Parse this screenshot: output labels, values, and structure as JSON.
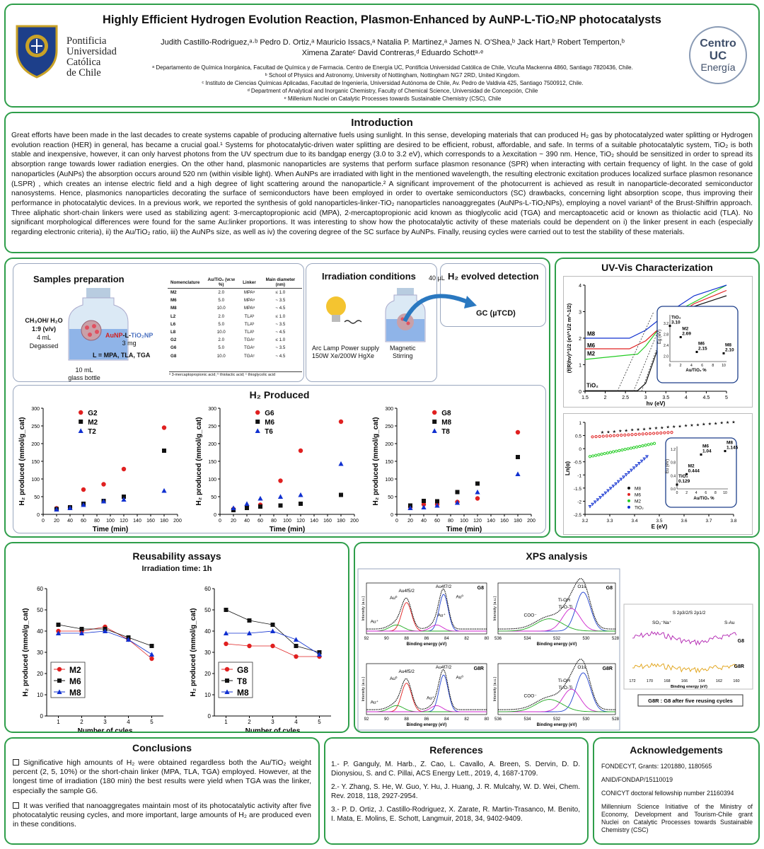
{
  "header": {
    "title": "Highly Efficient Hydrogen Evolution Reaction, Plasmon-Enhanced by AuNP-L-TiO₂NP photocatalysts",
    "authors1": "Judith Castillo-Rodriguez,ᵃ·ᵇ Pedro D. Ortiz,ᵃ Mauricio Issacs,ᵃ Natalia P. Martinez,ᵃ James N. O'Shea,ᵇ Jack Hart,ᵇ Robert Temperton,ᵇ",
    "authors2": "Ximena Zarateᶜ David Contreras,ᵈ Eduardo Schottᵃ·ᵉ",
    "aff": [
      "ᵃ Departamento de Química Inorgánica, Facultad de Química y de Farmacia. Centro de Energía UC, Pontificia Universidad Católica de Chile, Vicuña Mackenna 4860, Santiago 7820436, Chile.",
      "ᵇ School of Physics and Astronomy, University of Nottingham, Nottingham NG7 2RD, United Kingdom.",
      "ᶜ Instituto de Ciencias Químicas Aplicadas, Facultad de Ingeniería, Universidad Autónoma de Chile, Av. Pedro de Valdivia 425, Santiago 7500912, Chile.",
      "ᵈ Department of Analytical and Inorganic Chemistry, Faculty of Chemical Science, Universidad de Concepción, Chile",
      "ᵉ Millenium Nuclei on Catalytic Processes towards Sustainable Chemistry (CSC), Chile"
    ],
    "univ": [
      "Pontificia",
      "Universidad",
      "Católica",
      "de Chile"
    ],
    "centro": [
      "Centro",
      "UC",
      "Energía"
    ]
  },
  "intro": {
    "title": "Introduction",
    "text": "Great efforts have been made in the last decades to create systems capable of producing alternative fuels using sunlight. In this sense, developing materials that can produced H₂ gas by photocatalyzed water splitting or Hydrogen evolution reaction (HER) in general, has became a crucial goal.¹ Systems for photocatalytic-driven water splitting are desired to be efficient, robust, affordable, and safe. In terms of a suitable photocatalytic system, TiO₂ is both stable and inexpensive, however, it can only harvest photons from the UV spectrum due to its bandgap energy (3.0 to 3.2 eV), which corresponds to a λexcitation ~ 390 nm. Hence, TiO₂ should be sensitized in order to spread its absorption range towards lower radiation energies. On the other hand, plasmonic nanoparticles are systems that perform surface plasmon resonance (SPR) when interacting with certain frequency of light. In the case of gold nanoparticles (AuNPs) the absorption occurs around 520 nm (within visible light). When AuNPs are irradiated with light in the mentioned wavelength, the resulting electronic excitation produces localized surface plasmon resonance (LSPR) , which creates an intense electric field and a high degree of light scattering around the nanoparticle.² A significant improvement of the photocurrent is achieved as result in nanoparticle-decorated semiconductor nanosystems. Hence, plasmonics nanoparticles decorating the surface of semiconductors have been employed in order to overtake semiconductors (SC) drawbacks, concerning light absorption scope, thus improving their performance in photocatalytic devices. In a previous work, we reported the synthesis of gold nanoparticles-linker-TiO₂ nanoparticles nanoaggregates (AuNPs-L-TiO₂NPs), employing a novel variant³ of the Brust-Shiffrin approach. Three aliphatic short-chain linkers were used as stabilizing agent: 3-mercaptopropionic acid (MPA), 2-mercaptopropionic acid known as thioglycolic acid (TGA) and mercaptoacetic acid or known as thiolactic acid (TLA). No significant morphological differences were found for the same Au:linker proportions. It was interesting to show how the photocatalytic activity of these materials could be dependent on i) the linker present in each (especially regarding electronic criteria), ii) the Au/TiO₂ ratio, iii) the AuNPs size, as well as iv) the covering degree of the SC surface by AuNPs. Finally, reusing cycles were carried out to test the stability of these materials."
  },
  "prep": {
    "title": "Samples preparation",
    "solvent": "CH₃OH/ H₂O",
    "ratio": "1:9 (v/v)",
    "vol": "4 mL",
    "degassed": "Degassed",
    "bottle": "10 mL",
    "bottle2": "glass bottle",
    "cat_a": "AuNP",
    "cat_b": "-L-",
    "cat_c": "TiO₂NP",
    "mass": "3 mg",
    "linkers": "L = MPA, TLA, TGA",
    "table": {
      "headers": [
        "Nomenclature",
        "Au/TiO₂ (w:w %)",
        "Linker",
        "Main diameter (nm)"
      ],
      "rows": [
        [
          "M2",
          "2.0",
          "MPAᵃ",
          "≤ 1.0"
        ],
        [
          "M6",
          "5.0",
          "MPAᵃ",
          "~ 3.5"
        ],
        [
          "M8",
          "10.0",
          "MPAᵃ",
          "~ 4.5"
        ],
        [
          "L2",
          "2.0",
          "TLAᵇ",
          "≤ 1.0"
        ],
        [
          "L6",
          "5.0",
          "TLAᵇ",
          "~ 3.5"
        ],
        [
          "L8",
          "10.0",
          "TLAᵇ",
          "~ 4.5"
        ],
        [
          "G2",
          "2.0",
          "TGAᶜ",
          "≤ 1.0"
        ],
        [
          "G6",
          "5.0",
          "TGAᶜ",
          "~ 3.5"
        ],
        [
          "G8",
          "10.0",
          "TGAᶜ",
          "~ 4.5"
        ]
      ],
      "foot": "ᵃ 3-mercaptopropionic acid; ᵇ thiolactic acid; ᶜ thioglycolic acid"
    }
  },
  "irr": {
    "title": "Irradiation conditions",
    "lamp1": "Arc Lamp Power supply",
    "lamp2": "150W Xe/200W HgXe",
    "stir1": "Magnetic",
    "stir2": "Stirring",
    "vol": "40 µL"
  },
  "det": {
    "title": "H₂ evolved detection",
    "gc": "GC (µTCD)"
  },
  "h2": {
    "title": "H₂ Produced",
    "ylabel": "H₂ produced (mmol/g_cat)",
    "xlabel": "Time (min)"
  },
  "uvvis": {
    "title": "UV-Vis Characterization",
    "xlabel1": "hν  (eV)",
    "ylabel1": "(f(R)hν)^1/2  (eV^1/2 m^-1/2)",
    "xlabel2": "E (eV)",
    "ylabel2": "Ln(α)",
    "inset1_x": "Au/TiO₂ %",
    "inset1_y": "Eg (eV)",
    "inset2_x": "Au/TiO₂ %",
    "inset2_y": "Eu (eV)"
  },
  "reuse": {
    "title": "Reusability assays",
    "subtitle": "Irradiation time: 1h",
    "xlabel": "Number of cyles",
    "ylabel": "H₂ produced (mmol/g_cat)"
  },
  "xps": {
    "title": "XPS analysis",
    "be": "Binding energy (eV)",
    "intensity": "Intensity (a.u.)",
    "au_labels": [
      "Au4f5/2",
      "Au4f7/2",
      "Au⁰",
      "Au⁰",
      "Au⁺",
      "Au⁺"
    ],
    "o_labels": [
      "O1s",
      "Ti-OH",
      "Ti-O-Ti",
      "COO⁻"
    ],
    "s_title": "S 2p3/2/S 2p1/2",
    "s_labels": [
      "SO₃⁻Na⁺",
      "S-Au"
    ],
    "g8": "G8",
    "g8r": "G8R",
    "note": "G8R : G8 after five reusing cycles"
  },
  "concl": {
    "title": "Conclusions",
    "items": [
      "Significative high amounts of H₂ were obtained regardless both the Au/TiO₂ weight percent (2, 5, 10%) or the short-chain linker (MPA, TLA, TGA) employed. However, at the longest time of irradiation (180 min) the best results were yield when TGA was the linker, especially the sample G6.",
      "It was verified that nanoaggregates maintain most of its photocatalytic activity after five photocatalytic reusing cycles, and more important, large amounts of H₂ are produced even in these conditions."
    ]
  },
  "refs": {
    "title": "References",
    "items": [
      "1.- P. Ganguly, M. Harb., Z. Cao, L. Cavallo, A. Breen, S. Dervin, D. D. Dionysiou, S. and C. Pillai, ACS Energy Lett., 2019, 4, 1687-1709.",
      "2.- Y. Zhang, S. He, W. Guo, Y. Hu, J. Huang, J. R. Mulcahy, W. D. Wei, Chem. Rev. 2018, 118, 2927-2954.",
      "3.- P. D. Ortiz, J. Castillo-Rodriguez, X. Zarate, R. Martin-Trasanco, M. Benito, I. Mata, E. Molins, E. Schott, Langmuir, 2018, 34, 9402-9409."
    ]
  },
  "ack": {
    "title": "Acknowledgements",
    "items": [
      "FONDECYT, Grants: 1201880, 1180565",
      "ANID/FONDAP/15110019",
      "CONICYT doctoral fellowship number 21160394",
      "Millennium Science Initiative of the Ministry of Economy, Development and Tourism-Chile grant Nuclei on Catalytic Processes towards Sustainable Chemistry (CSC)"
    ]
  },
  "colors": {
    "red": "#e02020",
    "black": "#111111",
    "blue": "#1030d0",
    "green": "#22cc22",
    "panel": "#2e9e4a"
  },
  "chart_data": [
    {
      "type": "scatter",
      "legend_title": "",
      "x": [
        20,
        40,
        60,
        90,
        120,
        180
      ],
      "xlim": [
        0,
        200
      ],
      "ylim": [
        0,
        300
      ],
      "series": [
        {
          "name": "G2",
          "values": [
            17,
            20,
            70,
            85,
            128,
            245
          ]
        },
        {
          "name": "M2",
          "values": [
            15,
            20,
            30,
            38,
            50,
            180
          ]
        },
        {
          "name": "T2",
          "values": [
            14,
            18,
            27,
            37,
            42,
            67
          ]
        }
      ]
    },
    {
      "type": "scatter",
      "x": [
        20,
        40,
        60,
        90,
        120,
        180
      ],
      "xlim": [
        0,
        200
      ],
      "ylim": [
        0,
        300
      ],
      "series": [
        {
          "name": "G6",
          "values": [
            15,
            22,
            27,
            95,
            180,
            262
          ]
        },
        {
          "name": "M6",
          "values": [
            12,
            18,
            22,
            25,
            30,
            55
          ]
        },
        {
          "name": "T6",
          "values": [
            18,
            30,
            45,
            50,
            55,
            143
          ]
        }
      ]
    },
    {
      "type": "scatter",
      "x": [
        20,
        40,
        60,
        90,
        120,
        180
      ],
      "xlim": [
        0,
        200
      ],
      "ylim": [
        0,
        300
      ],
      "series": [
        {
          "name": "G8",
          "values": [
            20,
            28,
            28,
            35,
            45,
            232
          ]
        },
        {
          "name": "M8",
          "values": [
            25,
            38,
            37,
            63,
            87,
            162
          ]
        },
        {
          "name": "T8",
          "values": [
            18,
            20,
            25,
            33,
            63,
            114
          ]
        }
      ]
    },
    {
      "type": "line",
      "x": [
        1,
        2,
        3,
        4,
        5
      ],
      "xlim": [
        0.5,
        5.5
      ],
      "ylim": [
        0,
        60
      ],
      "series": [
        {
          "name": "M2",
          "values": [
            40,
            40,
            42,
            36,
            27
          ]
        },
        {
          "name": "M6",
          "values": [
            43,
            41,
            41,
            37,
            33
          ]
        },
        {
          "name": "M8",
          "values": [
            39,
            39,
            40,
            36,
            29
          ]
        }
      ]
    },
    {
      "type": "line",
      "x": [
        1,
        2,
        3,
        4,
        5
      ],
      "xlim": [
        0.5,
        5.5
      ],
      "ylim": [
        0,
        60
      ],
      "series": [
        {
          "name": "G8",
          "values": [
            34,
            33,
            33,
            28,
            28
          ]
        },
        {
          "name": "T8",
          "values": [
            50,
            45,
            43,
            33,
            30
          ]
        },
        {
          "name": "M8",
          "values": [
            39,
            39,
            40,
            36,
            29
          ]
        }
      ]
    },
    {
      "type": "scatter",
      "inset": "Eg",
      "points": [
        {
          "name": "TiO₂",
          "x": 0,
          "y": 3.1
        },
        {
          "name": "M2",
          "x": 2,
          "y": 2.69
        },
        {
          "name": "M6",
          "x": 5,
          "y": 2.15
        },
        {
          "name": "M8",
          "x": 10,
          "y": 2.1
        }
      ]
    },
    {
      "type": "scatter",
      "inset": "Eu",
      "points": [
        {
          "name": "TiO₂",
          "x": 0,
          "y": 0.129
        },
        {
          "name": "M2",
          "x": 2,
          "y": 0.444
        },
        {
          "name": "M6",
          "x": 5,
          "y": 1.04
        },
        {
          "name": "M8",
          "x": 10,
          "y": 1.145
        }
      ]
    }
  ]
}
